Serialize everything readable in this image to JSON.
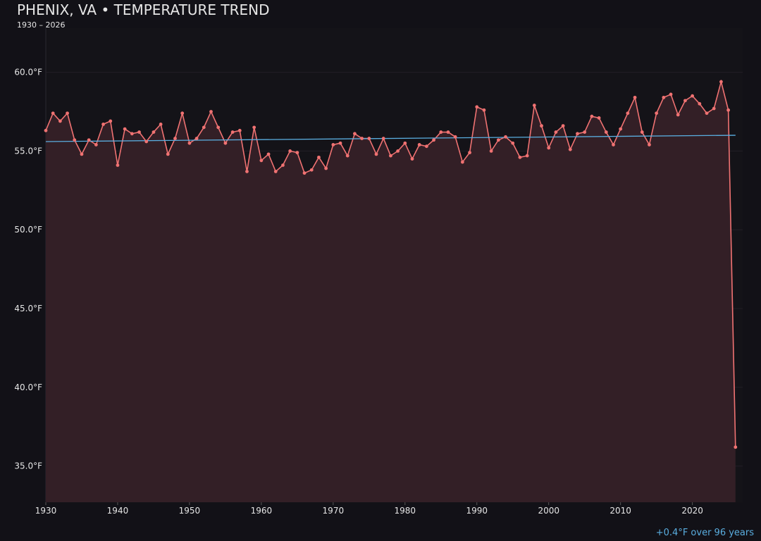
{
  "chart_data": {
    "type": "line",
    "title": "PHENIX, VA • TEMPERATURE TREND",
    "subtitle": "1930 – 2026",
    "annotation": "+0.4°F over 96 years",
    "x": [
      1930,
      1931,
      1932,
      1933,
      1934,
      1935,
      1936,
      1937,
      1938,
      1939,
      1940,
      1941,
      1942,
      1943,
      1944,
      1945,
      1946,
      1947,
      1948,
      1949,
      1950,
      1951,
      1952,
      1953,
      1954,
      1955,
      1956,
      1957,
      1958,
      1959,
      1960,
      1961,
      1962,
      1963,
      1964,
      1965,
      1966,
      1967,
      1968,
      1969,
      1970,
      1971,
      1972,
      1973,
      1974,
      1975,
      1976,
      1977,
      1978,
      1979,
      1980,
      1981,
      1982,
      1983,
      1984,
      1985,
      1986,
      1987,
      1988,
      1989,
      1990,
      1991,
      1992,
      1993,
      1994,
      1995,
      1996,
      1997,
      1998,
      1999,
      2000,
      2001,
      2002,
      2003,
      2004,
      2005,
      2006,
      2007,
      2008,
      2009,
      2010,
      2011,
      2012,
      2013,
      2014,
      2015,
      2016,
      2017,
      2018,
      2019,
      2020,
      2021,
      2022,
      2023,
      2024,
      2025,
      2026
    ],
    "series": [
      {
        "color": "#f07272",
        "area_color": "#331f26",
        "values": [
          56.3,
          57.4,
          56.9,
          57.4,
          55.7,
          54.8,
          55.7,
          55.4,
          56.7,
          56.9,
          54.1,
          56.4,
          56.1,
          56.2,
          55.6,
          56.2,
          56.7,
          54.8,
          55.8,
          57.4,
          55.5,
          55.8,
          56.5,
          57.5,
          56.5,
          55.5,
          56.2,
          56.3,
          53.7,
          56.5,
          54.4,
          54.8,
          53.7,
          54.1,
          55.0,
          54.9,
          53.6,
          53.8,
          54.6,
          53.9,
          55.4,
          55.5,
          54.7,
          56.1,
          55.8,
          55.8,
          54.8,
          55.8,
          54.7,
          55.0,
          55.5,
          54.5,
          55.4,
          55.3,
          55.7,
          56.2,
          56.2,
          55.9,
          54.3,
          54.9,
          57.8,
          57.6,
          55.0,
          55.7,
          55.9,
          55.5,
          54.6,
          54.7,
          57.9,
          56.6,
          55.2,
          56.2,
          56.6,
          55.1,
          56.1,
          56.2,
          57.2,
          57.1,
          56.2,
          55.4,
          56.4,
          57.4,
          58.4,
          56.2,
          55.4,
          57.4,
          58.4,
          58.6,
          57.3,
          58.2,
          58.5,
          58.0,
          57.4,
          57.7,
          59.4,
          57.6,
          36.2
        ]
      }
    ],
    "trend": {
      "color": "#5aaee0",
      "x": [
        1930,
        2026
      ],
      "values": [
        55.6,
        56.0
      ]
    },
    "xlim": [
      1930,
      2027
    ],
    "xticks": [
      1930,
      1940,
      1950,
      1960,
      1970,
      1980,
      1990,
      2000,
      2010,
      2020
    ],
    "ylim": [
      32.7,
      62.8
    ],
    "yticks": [
      {
        "value": 35,
        "label": "35.0°F"
      },
      {
        "value": 40,
        "label": "40.0°F"
      },
      {
        "value": 45,
        "label": "45.0°F"
      },
      {
        "value": 50,
        "label": "50.0°F"
      },
      {
        "value": 55,
        "label": "55.0°F"
      },
      {
        "value": 60,
        "label": "60.0°F"
      }
    ],
    "grid": true
  }
}
